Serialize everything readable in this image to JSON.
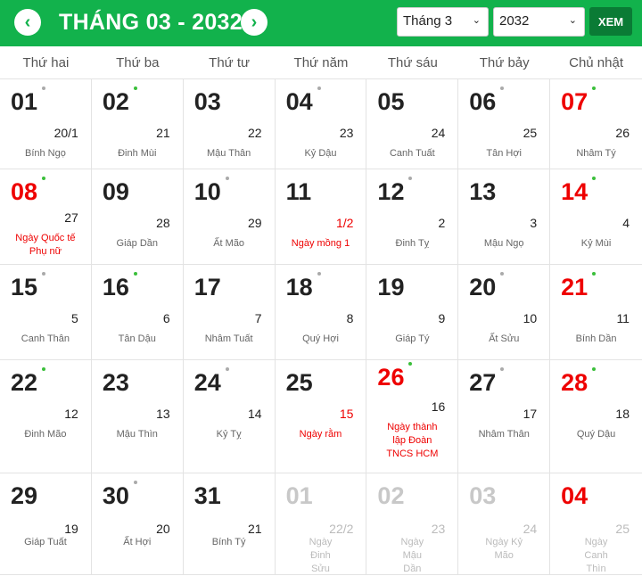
{
  "header": {
    "title": "THÁNG 03 - 2032",
    "month_select": "Tháng 3",
    "year_select": "2032",
    "view_button": "XEM",
    "accent": "#12b24c"
  },
  "weekdays": [
    "Thứ hai",
    "Thứ ba",
    "Thứ tư",
    "Thứ năm",
    "Thứ sáu",
    "Thứ bảy",
    "Chủ nhật"
  ],
  "days": [
    {
      "d": "01",
      "l": "20/1",
      "n": "Bính Ngọ",
      "dot": "gray"
    },
    {
      "d": "02",
      "l": "21",
      "n": "Đinh Mùi",
      "dot": "green"
    },
    {
      "d": "03",
      "l": "22",
      "n": "Mậu Thân"
    },
    {
      "d": "04",
      "l": "23",
      "n": "Kỷ Dậu",
      "dot": "gray"
    },
    {
      "d": "05",
      "l": "24",
      "n": "Canh Tuất"
    },
    {
      "d": "06",
      "l": "25",
      "n": "Tân Hợi",
      "dot": "gray"
    },
    {
      "d": "07",
      "l": "26",
      "n": "Nhâm Tý",
      "dot": "green",
      "red": true
    },
    {
      "d": "08",
      "l": "27",
      "n": "Ngày Quốc tế Phụ nữ",
      "dot": "green",
      "red": true,
      "event": true
    },
    {
      "d": "09",
      "l": "28",
      "n": "Giáp Dần"
    },
    {
      "d": "10",
      "l": "29",
      "n": "Ất Mão",
      "dot": "gray"
    },
    {
      "d": "11",
      "l": "1/2",
      "n": "Ngày mồng 1",
      "lunar_red": true,
      "event": true
    },
    {
      "d": "12",
      "l": "2",
      "n": "Đinh Tỵ",
      "dot": "gray"
    },
    {
      "d": "13",
      "l": "3",
      "n": "Mậu Ngọ"
    },
    {
      "d": "14",
      "l": "4",
      "n": "Kỷ Mùi",
      "dot": "green",
      "red": true
    },
    {
      "d": "15",
      "l": "5",
      "n": "Canh Thân",
      "dot": "gray"
    },
    {
      "d": "16",
      "l": "6",
      "n": "Tân Dậu",
      "dot": "green"
    },
    {
      "d": "17",
      "l": "7",
      "n": "Nhâm Tuất"
    },
    {
      "d": "18",
      "l": "8",
      "n": "Quý Hợi",
      "dot": "gray"
    },
    {
      "d": "19",
      "l": "9",
      "n": "Giáp Tý"
    },
    {
      "d": "20",
      "l": "10",
      "n": "Ất Sửu",
      "dot": "gray"
    },
    {
      "d": "21",
      "l": "11",
      "n": "Bính Dần",
      "dot": "green",
      "red": true
    },
    {
      "d": "22",
      "l": "12",
      "n": "Đinh Mão",
      "dot": "green"
    },
    {
      "d": "23",
      "l": "13",
      "n": "Mậu Thìn"
    },
    {
      "d": "24",
      "l": "14",
      "n": "Kỷ Tỵ",
      "dot": "gray"
    },
    {
      "d": "25",
      "l": "15",
      "n": "Ngày rằm",
      "lunar_red": true,
      "event": true
    },
    {
      "d": "26",
      "l": "16",
      "n": "Ngày thành lập Đoàn TNCS HCM",
      "dot": "green",
      "red": true,
      "event": true
    },
    {
      "d": "27",
      "l": "17",
      "n": "Nhâm Thân",
      "dot": "gray"
    },
    {
      "d": "28",
      "l": "18",
      "n": "Quý Dậu",
      "dot": "green",
      "red": true
    },
    {
      "d": "29",
      "l": "19",
      "n": "Giáp Tuất"
    },
    {
      "d": "30",
      "l": "20",
      "n": "Ất Hợi",
      "dot": "gray"
    },
    {
      "d": "31",
      "l": "21",
      "n": "Bính Tý"
    },
    {
      "d": "01",
      "l": "22/2",
      "n": "Ngày Đinh Sửu",
      "other_month": true
    },
    {
      "d": "02",
      "l": "23",
      "n": "Ngày Mậu Dần",
      "other_month": true
    },
    {
      "d": "03",
      "l": "24",
      "n": "Ngày Kỷ Mão",
      "other_month": true
    },
    {
      "d": "04",
      "l": "25",
      "n": "Ngày Canh Thìn",
      "other_month": true,
      "red": true
    }
  ]
}
